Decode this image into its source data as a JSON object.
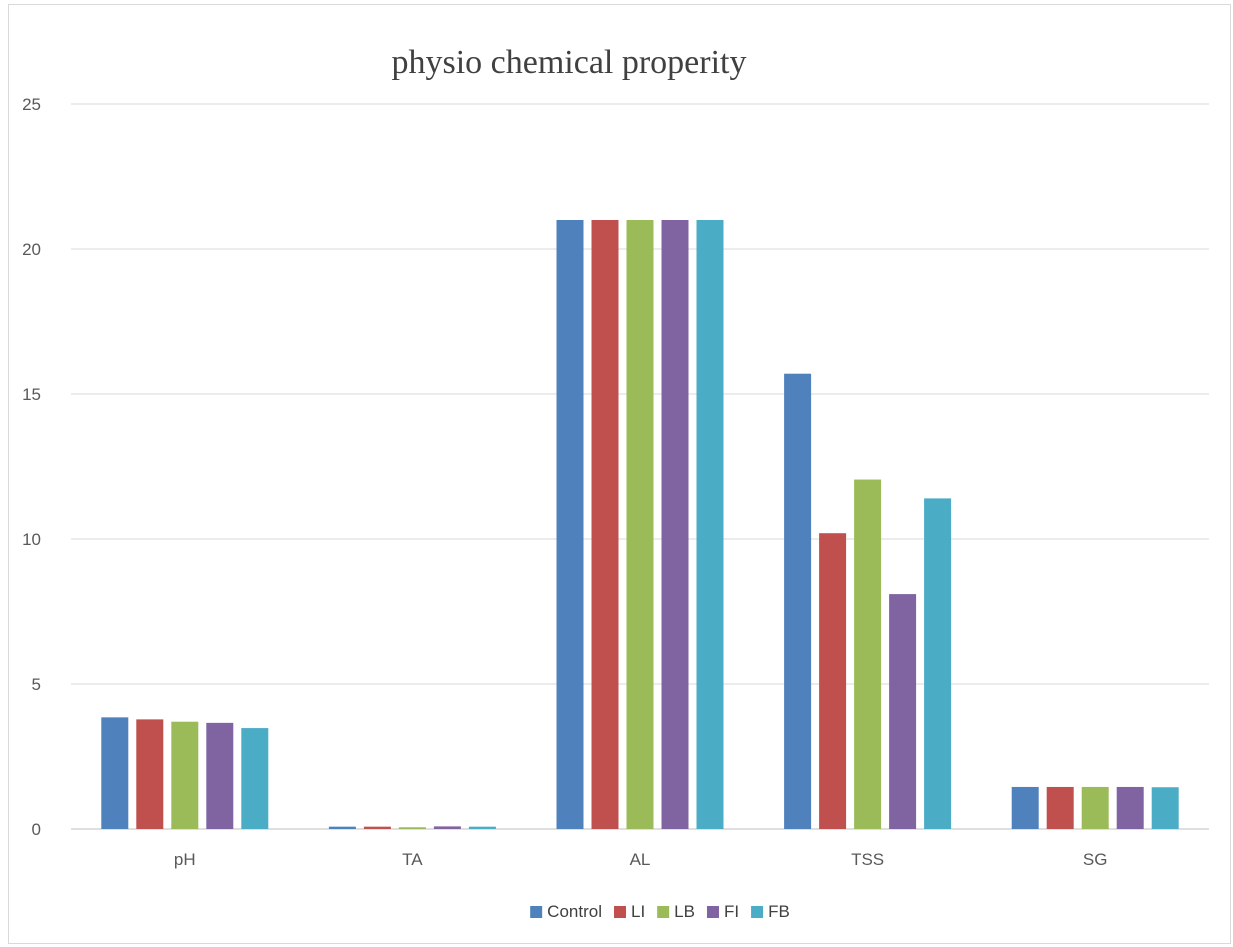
{
  "chart_data": {
    "type": "bar",
    "title": "physio chemical properity",
    "categories": [
      "pH",
      "TA",
      "AL",
      "TSS",
      "SG"
    ],
    "series": [
      {
        "name": "Control",
        "color": "#4f81bd",
        "values": [
          3.85,
          0.08,
          21.0,
          15.7,
          1.45
        ]
      },
      {
        "name": "LI",
        "color": "#c0504d",
        "values": [
          3.78,
          0.08,
          21.0,
          10.2,
          1.45
        ]
      },
      {
        "name": "LB",
        "color": "#9bbb59",
        "values": [
          3.7,
          0.06,
          21.0,
          12.05,
          1.45
        ]
      },
      {
        "name": "FI",
        "color": "#8064a2",
        "values": [
          3.66,
          0.09,
          21.0,
          8.1,
          1.45
        ]
      },
      {
        "name": "FB",
        "color": "#4bacc6",
        "values": [
          3.48,
          0.08,
          21.0,
          11.4,
          1.44
        ]
      }
    ],
    "ylim": [
      0,
      25
    ],
    "yticks": [
      "0",
      "5",
      "10",
      "15",
      "20",
      "25"
    ],
    "xlabel": "",
    "ylabel": "",
    "grid": true,
    "legend_position": "bottom"
  }
}
